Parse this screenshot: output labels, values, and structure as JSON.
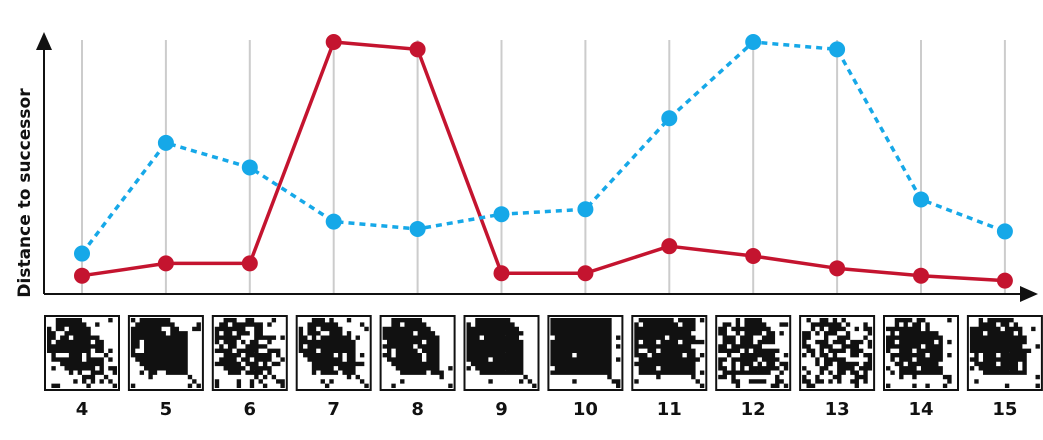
{
  "chart_data": {
    "type": "line",
    "ylabel": "Distance to successor",
    "xlabel": "",
    "categories": [
      "4",
      "5",
      "6",
      "7",
      "8",
      "9",
      "10",
      "11",
      "12",
      "13",
      "14",
      "15"
    ],
    "ylim": [
      0,
      1
    ],
    "grid": {
      "vertical": true,
      "horizontal": false
    },
    "legend": "none",
    "series": [
      {
        "color": "#c4142f",
        "line_style": "solid",
        "values": [
          0.05,
          0.1,
          0.1,
          1.0,
          0.97,
          0.06,
          0.06,
          0.17,
          0.13,
          0.08,
          0.05,
          0.03
        ]
      },
      {
        "color": "#16a8e8",
        "line_style": "dotted",
        "values": [
          0.14,
          0.59,
          0.49,
          0.27,
          0.24,
          0.3,
          0.32,
          0.69,
          1.0,
          0.97,
          0.36,
          0.23
        ]
      }
    ],
    "thumbnails": {
      "description_free": true,
      "grid_size": 16
    }
  },
  "colors": {
    "axis": "#111111",
    "grid": "#cccccc"
  }
}
